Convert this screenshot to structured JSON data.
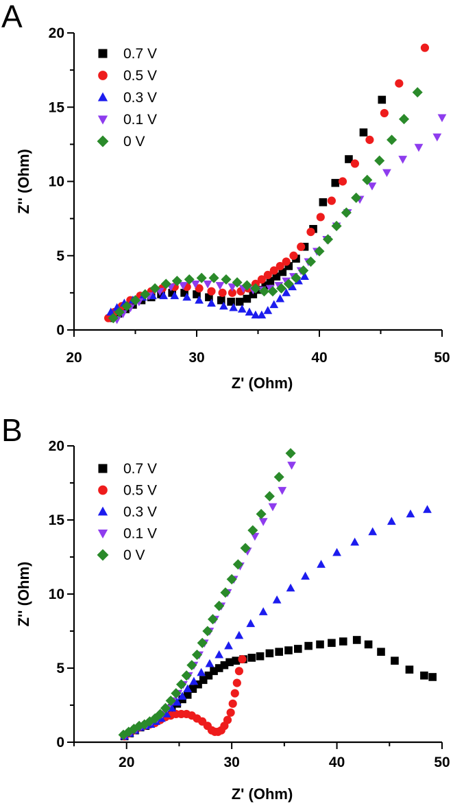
{
  "chart_data": [
    {
      "type": "scatter",
      "panel_label": "A",
      "title": "",
      "xlabel": "Z' (Ohm)",
      "ylabel": "Z'' (Ohm)",
      "xlim": [
        20,
        50
      ],
      "ylim": [
        0,
        20
      ],
      "xticks": [
        20,
        30,
        40,
        50
      ],
      "yticks": [
        0,
        5,
        10,
        15,
        20
      ],
      "grid": false,
      "legend_position": "top-left",
      "series": [
        {
          "name": "0.7 V",
          "marker": "square",
          "color": "#000000",
          "x": [
            23.0,
            23.6,
            24.2,
            24.8,
            25.5,
            26.3,
            27.1,
            28.0,
            29.0,
            30.0,
            31.0,
            32.0,
            32.8,
            33.5,
            34.1,
            34.6,
            35.1,
            35.6,
            36.0,
            36.5,
            37.0,
            37.5,
            38.1,
            38.8,
            39.5,
            40.3,
            41.3,
            42.4,
            43.6,
            45.1
          ],
          "y": [
            0.8,
            1.1,
            1.4,
            1.7,
            2.0,
            2.2,
            2.4,
            2.5,
            2.5,
            2.4,
            2.2,
            2.0,
            1.9,
            1.9,
            2.1,
            2.4,
            2.7,
            3.0,
            3.3,
            3.6,
            3.9,
            4.3,
            4.8,
            5.6,
            6.8,
            8.6,
            9.9,
            11.5,
            13.3,
            15.5
          ]
        },
        {
          "name": "0.5 V",
          "marker": "circle",
          "color": "#ee1c1c",
          "x": [
            22.8,
            23.3,
            23.9,
            24.6,
            25.4,
            26.3,
            27.2,
            28.2,
            29.2,
            30.2,
            31.2,
            32.1,
            32.9,
            33.6,
            34.2,
            34.8,
            35.3,
            35.8,
            36.3,
            36.8,
            37.3,
            37.9,
            38.5,
            39.3,
            40.1,
            41.0,
            41.9,
            42.9,
            44.1,
            45.3,
            46.5,
            48.6
          ],
          "y": [
            0.8,
            1.2,
            1.6,
            2.0,
            2.3,
            2.6,
            2.8,
            2.9,
            2.9,
            2.8,
            2.6,
            2.5,
            2.5,
            2.6,
            2.8,
            3.1,
            3.4,
            3.7,
            4.0,
            4.3,
            4.6,
            5.0,
            5.6,
            6.6,
            7.6,
            8.7,
            10.0,
            11.2,
            12.8,
            14.6,
            16.6,
            19.0
          ]
        },
        {
          "name": "0.3 V",
          "marker": "triangle-up",
          "color": "#1c1cee",
          "x": [
            23.0,
            23.5,
            24.1,
            24.8,
            25.6,
            26.4,
            27.3,
            28.2,
            29.2,
            30.2,
            31.2,
            32.2,
            33.0,
            33.7,
            34.3,
            34.8,
            35.3,
            35.8,
            36.3,
            36.8,
            37.3,
            37.8,
            38.3,
            38.8
          ],
          "y": [
            1.2,
            1.5,
            1.8,
            2.0,
            2.2,
            2.3,
            2.3,
            2.3,
            2.2,
            2.0,
            1.8,
            1.6,
            1.5,
            1.4,
            1.2,
            1.0,
            1.0,
            1.3,
            1.7,
            2.1,
            2.5,
            2.9,
            3.3,
            3.6
          ]
        },
        {
          "name": "0.1 V",
          "marker": "triangle-down",
          "color": "#8e3cee",
          "x": [
            23.5,
            24.0,
            24.6,
            25.3,
            26.1,
            27.0,
            27.9,
            28.9,
            29.9,
            30.9,
            31.9,
            32.9,
            33.8,
            34.6,
            35.3,
            36.0,
            36.7,
            37.3,
            37.9,
            38.5,
            39.1,
            39.8,
            40.6,
            41.4,
            42.3,
            43.3,
            44.3,
            45.5,
            46.8,
            48.1,
            49.6,
            50.0
          ],
          "y": [
            0.7,
            1.1,
            1.5,
            1.9,
            2.3,
            2.6,
            2.9,
            3.0,
            3.1,
            3.1,
            3.0,
            2.9,
            2.8,
            2.7,
            2.7,
            2.8,
            3.0,
            3.3,
            3.6,
            4.0,
            4.6,
            5.3,
            6.1,
            7.0,
            7.9,
            8.8,
            9.7,
            10.6,
            11.5,
            12.3,
            13.0,
            14.3
          ]
        },
        {
          "name": "0 V",
          "marker": "diamond",
          "color": "#2a8a2a",
          "x": [
            23.2,
            23.7,
            24.3,
            25.0,
            25.8,
            26.6,
            27.5,
            28.4,
            29.4,
            30.4,
            31.4,
            32.4,
            33.3,
            34.1,
            34.8,
            35.5,
            36.2,
            36.9,
            37.5,
            38.1,
            38.7,
            39.3,
            40.0,
            40.7,
            41.4,
            42.2,
            43.0,
            43.9,
            44.9,
            45.9,
            46.9,
            48.0
          ],
          "y": [
            0.8,
            1.2,
            1.6,
            2.0,
            2.4,
            2.8,
            3.1,
            3.3,
            3.4,
            3.5,
            3.5,
            3.4,
            3.2,
            3.0,
            2.8,
            2.6,
            2.6,
            2.8,
            3.1,
            3.5,
            4.0,
            4.6,
            5.3,
            6.1,
            7.0,
            7.9,
            8.9,
            10.1,
            11.4,
            12.8,
            14.2,
            16.0
          ]
        }
      ]
    },
    {
      "type": "scatter",
      "panel_label": "B",
      "title": "",
      "xlabel": "Z' (Ohm)",
      "ylabel": "Z'' (Ohm)",
      "xlim": [
        15,
        50
      ],
      "ylim": [
        0,
        20
      ],
      "xticks": [
        20,
        30,
        40,
        50
      ],
      "yticks": [
        0,
        5,
        10,
        15,
        20
      ],
      "grid": false,
      "legend_position": "top-left",
      "series": [
        {
          "name": "0.7 V",
          "marker": "square",
          "color": "#000000",
          "x": [
            19.8,
            20.3,
            20.8,
            21.3,
            21.8,
            22.3,
            22.8,
            23.3,
            23.8,
            24.3,
            24.8,
            25.3,
            25.8,
            26.3,
            26.8,
            27.3,
            27.8,
            28.3,
            28.8,
            29.3,
            29.8,
            30.4,
            31.1,
            31.9,
            32.7,
            33.6,
            34.5,
            35.4,
            36.3,
            37.3,
            38.4,
            39.5,
            40.6,
            41.9,
            43.0,
            44.2,
            45.5,
            46.9,
            48.3,
            49.1
          ],
          "y": [
            0.4,
            0.6,
            0.8,
            1.0,
            1.1,
            1.3,
            1.5,
            1.7,
            2.0,
            2.3,
            2.6,
            2.9,
            3.2,
            3.6,
            3.9,
            4.2,
            4.5,
            4.8,
            5.0,
            5.2,
            5.4,
            5.5,
            5.6,
            5.7,
            5.8,
            6.0,
            6.1,
            6.2,
            6.3,
            6.5,
            6.6,
            6.7,
            6.8,
            6.9,
            6.6,
            6.1,
            5.5,
            4.9,
            4.5,
            4.4
          ]
        },
        {
          "name": "0.5 V",
          "marker": "circle",
          "color": "#ee1c1c",
          "x": [
            19.8,
            20.2,
            20.7,
            21.2,
            21.7,
            22.2,
            22.7,
            23.2,
            23.7,
            24.2,
            24.7,
            25.2,
            25.7,
            26.2,
            26.7,
            27.2,
            27.7,
            28.1,
            28.4,
            28.7,
            29.0,
            29.3,
            29.6,
            29.9,
            30.1,
            30.3,
            30.5,
            30.7,
            31.0
          ],
          "y": [
            0.4,
            0.6,
            0.8,
            1.0,
            1.1,
            1.2,
            1.3,
            1.5,
            1.7,
            1.8,
            1.9,
            1.9,
            1.9,
            1.8,
            1.6,
            1.4,
            1.1,
            0.8,
            0.7,
            0.7,
            0.8,
            1.1,
            1.5,
            2.0,
            2.6,
            3.3,
            4.0,
            4.8,
            5.6
          ]
        },
        {
          "name": "0.3 V",
          "marker": "triangle-up",
          "color": "#1c1cee",
          "x": [
            19.8,
            20.3,
            20.8,
            21.3,
            21.8,
            22.3,
            22.8,
            23.3,
            23.8,
            24.3,
            24.8,
            25.3,
            25.8,
            26.4,
            27.1,
            27.9,
            28.8,
            29.7,
            30.7,
            31.8,
            33.0,
            34.3,
            35.6,
            37.0,
            38.5,
            40.0,
            41.7,
            43.4,
            45.2,
            47.0,
            48.6
          ],
          "y": [
            0.4,
            0.6,
            0.8,
            1.0,
            1.1,
            1.2,
            1.4,
            1.6,
            1.9,
            2.3,
            2.7,
            3.1,
            3.6,
            4.1,
            4.7,
            5.3,
            5.9,
            6.5,
            7.2,
            8.0,
            8.8,
            9.6,
            10.4,
            11.2,
            12.0,
            12.8,
            13.5,
            14.2,
            14.9,
            15.4,
            15.7
          ]
        },
        {
          "name": "0.1 V",
          "marker": "triangle-down",
          "color": "#8e3cee",
          "x": [
            19.9,
            20.4,
            20.9,
            21.4,
            21.9,
            22.4,
            22.9,
            23.4,
            23.9,
            24.4,
            24.9,
            25.4,
            25.9,
            26.4,
            26.9,
            27.4,
            27.9,
            28.4,
            29.0,
            29.6,
            30.2,
            30.8,
            31.5,
            32.2,
            33.0,
            33.9,
            34.8,
            35.7
          ],
          "y": [
            0.5,
            0.7,
            0.9,
            1.1,
            1.2,
            1.4,
            1.6,
            1.9,
            2.3,
            2.8,
            3.3,
            3.9,
            4.5,
            5.2,
            5.9,
            6.7,
            7.5,
            8.3,
            9.2,
            10.1,
            11.0,
            11.9,
            12.9,
            13.9,
            14.9,
            15.9,
            17.0,
            18.7
          ]
        },
        {
          "name": "0 V",
          "marker": "diamond",
          "color": "#2a8a2a",
          "x": [
            19.7,
            20.2,
            20.7,
            21.2,
            21.7,
            22.2,
            22.7,
            23.2,
            23.7,
            24.2,
            24.7,
            25.2,
            25.7,
            26.2,
            26.7,
            27.2,
            27.7,
            28.2,
            28.8,
            29.4,
            30.0,
            30.6,
            31.3,
            32.0,
            32.8,
            33.6,
            34.5,
            35.6
          ],
          "y": [
            0.5,
            0.7,
            0.9,
            1.1,
            1.2,
            1.4,
            1.6,
            1.9,
            2.3,
            2.8,
            3.3,
            3.9,
            4.5,
            5.2,
            5.9,
            6.7,
            7.5,
            8.3,
            9.2,
            10.1,
            11.0,
            12.0,
            13.1,
            14.3,
            15.4,
            16.6,
            17.9,
            19.5
          ]
        }
      ]
    }
  ]
}
